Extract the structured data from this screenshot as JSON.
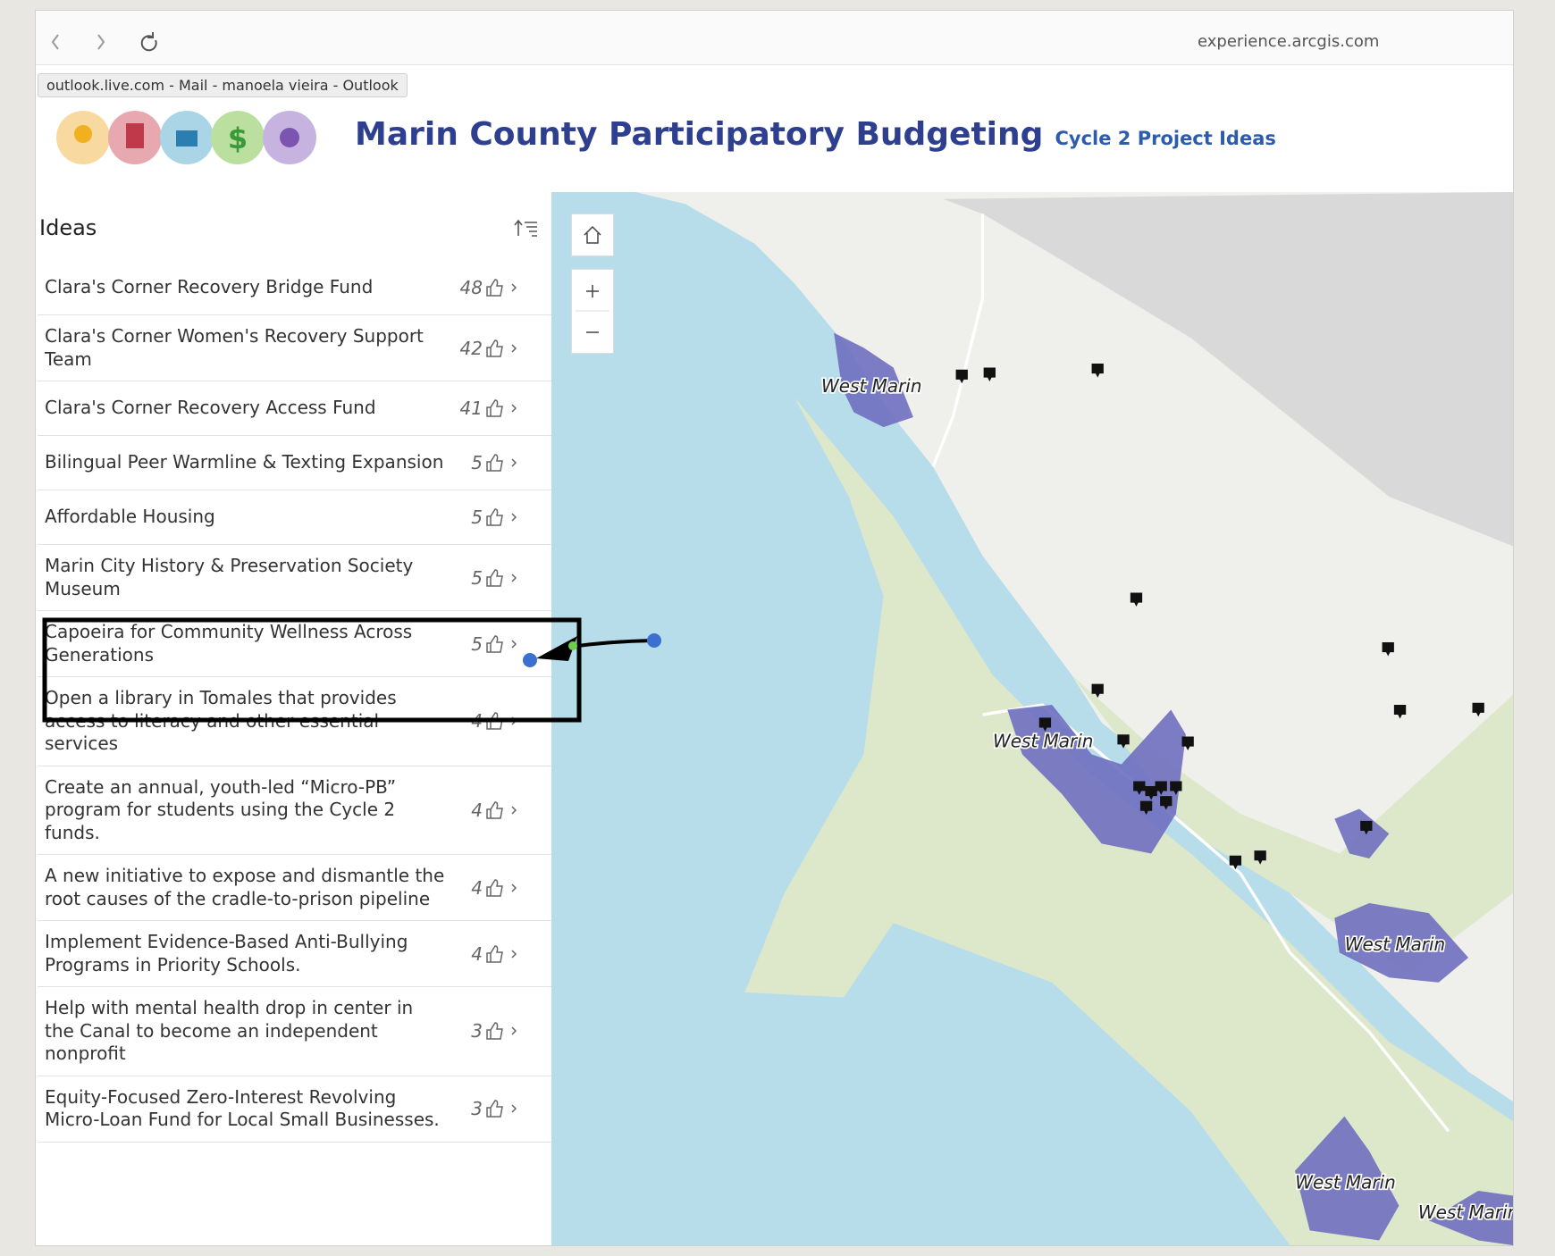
{
  "browser": {
    "url": "experience.arcgis.com",
    "tooltip": "outlook.live.com - Mail - manoela vieira - Outlook"
  },
  "header": {
    "title": "Marin County Participatory Budgeting",
    "subtitle": "Cycle 2 Project Ideas"
  },
  "panel": {
    "title": "Ideas",
    "items": [
      {
        "title": "Clara's Corner Recovery Bridge Fund",
        "votes": 48
      },
      {
        "title": "Clara's Corner Women's Recovery Support Team",
        "votes": 42
      },
      {
        "title": "Clara's Corner Recovery Access Fund",
        "votes": 41
      },
      {
        "title": "Bilingual Peer Warmline & Texting Expansion",
        "votes": 5
      },
      {
        "title": "Affordable Housing",
        "votes": 5
      },
      {
        "title": "Marin City History & Preservation Society Museum",
        "votes": 5
      },
      {
        "title": "Capoeira for Community Wellness Across Generations",
        "votes": 5
      },
      {
        "title": "Open a library in Tomales that provides access to literacy and other essential services",
        "votes": 4
      },
      {
        "title": "Create an annual, youth-led “Micro-PB” program for students using the Cycle 2 funds.",
        "votes": 4
      },
      {
        "title": "A new initiative to expose and dismantle the root causes of the cradle-to-prison pipeline",
        "votes": 4
      },
      {
        "title": "Implement Evidence-Based Anti-Bullying Programs in Priority Schools.",
        "votes": 4
      },
      {
        "title": "Help with mental health drop in center in the Canal to become an independent nonprofit",
        "votes": 3
      },
      {
        "title": "Equity-Focused Zero-Interest Revolving Micro-Loan Fund for Local Small Businesses.",
        "votes": 3
      }
    ]
  },
  "map": {
    "labels": [
      "West Marin",
      "West Marin",
      "West Marin",
      "West Marin",
      "West Marin"
    ]
  }
}
